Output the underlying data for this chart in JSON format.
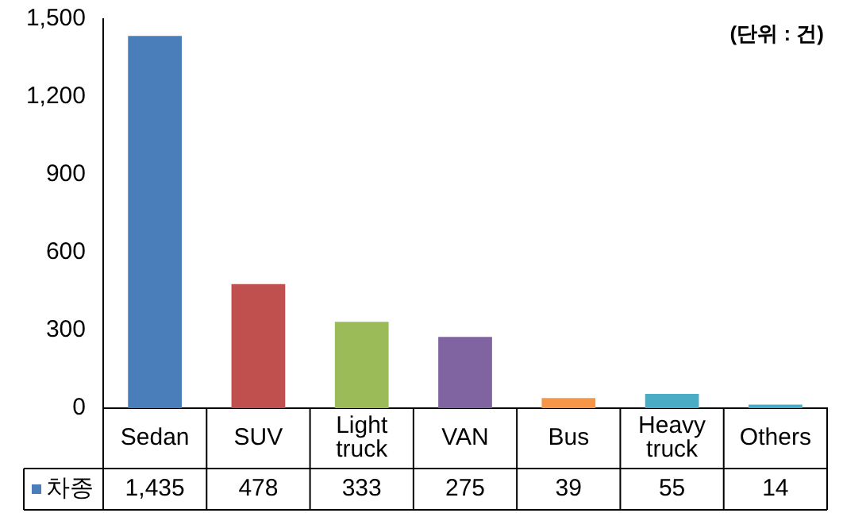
{
  "chart_data": {
    "type": "bar",
    "categories": [
      "Sedan",
      "SUV",
      "Light truck",
      "VAN",
      "Bus",
      "Heavy truck",
      "Others"
    ],
    "series": [
      {
        "name": "차종",
        "color": "#4a7ebb",
        "colors": [
          "#4a7ebb",
          "#c0504d",
          "#9bbb59",
          "#8064a2",
          "#f79646",
          "#4bacc6",
          "#4bacc6"
        ],
        "values": [
          1435,
          478,
          333,
          275,
          39,
          55,
          14
        ],
        "value_labels": [
          "1,435",
          "478",
          "333",
          "275",
          "39",
          "55",
          "14"
        ]
      }
    ],
    "ylim": [
      0,
      1500
    ],
    "yticks": [
      0,
      300,
      600,
      900,
      {
        "value": 1200,
        "label": "1,200"
      },
      {
        "value": 1500,
        "label": "1,500"
      }
    ],
    "grid": false,
    "legend": "bottom",
    "annotations": [
      "(단위 : 건)"
    ]
  }
}
